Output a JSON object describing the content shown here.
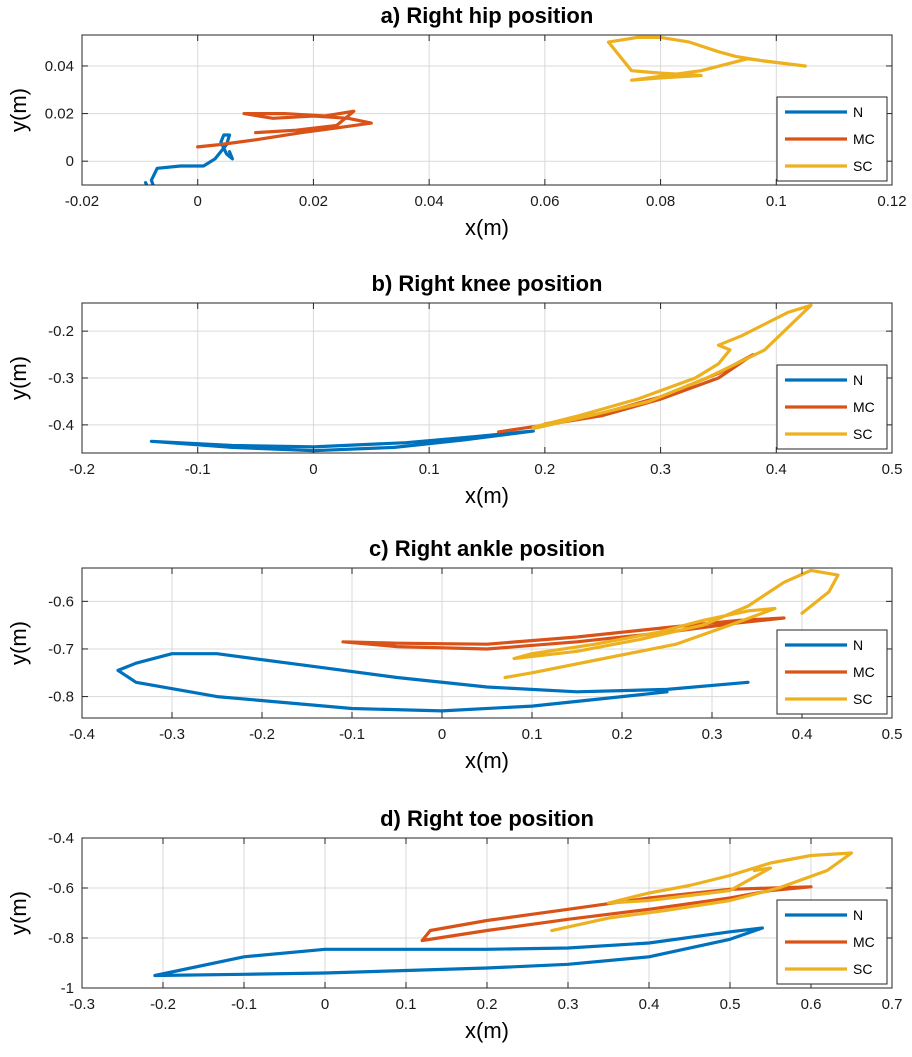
{
  "colors": {
    "N": "#0072BD",
    "MC": "#D95319",
    "SC": "#EDB120",
    "grid": "#d9d9d9",
    "axis": "#262626"
  },
  "chart_data": [
    {
      "type": "line",
      "title": "a) Right hip position",
      "xlabel": "x(m)",
      "ylabel": "y(m)",
      "xlim": [
        -0.02,
        0.12
      ],
      "ylim": [
        -0.01,
        0.053
      ],
      "xticks": [
        -0.02,
        0,
        0.02,
        0.04,
        0.06,
        0.08,
        0.1,
        0.12
      ],
      "xtick_labels": [
        "-0.02",
        "0",
        "0.02",
        "0.04",
        "0.06",
        "0.08",
        "0.1",
        "0.12"
      ],
      "yticks": [
        0,
        0.02,
        0.04
      ],
      "ytick_labels": [
        "0",
        "0.02",
        "0.04"
      ],
      "grid": true,
      "legend": "bottom-right",
      "series": [
        {
          "name": "N",
          "points": [
            [
              -0.009,
              -0.009
            ],
            [
              -0.0085,
              -0.012
            ],
            [
              -0.0075,
              -0.0115
            ],
            [
              -0.008,
              -0.008
            ],
            [
              -0.007,
              -0.003
            ],
            [
              -0.003,
              -0.002
            ],
            [
              0.001,
              -0.002
            ],
            [
              0.003,
              0.001
            ],
            [
              0.005,
              0.007
            ],
            [
              0.0055,
              0.011
            ],
            [
              0.0045,
              0.011
            ],
            [
              0.004,
              0.008
            ],
            [
              0.005,
              0.003
            ],
            [
              0.006,
              0.001
            ],
            [
              0.0055,
              0.004
            ]
          ]
        },
        {
          "name": "MC",
          "points": [
            [
              0.0,
              0.006
            ],
            [
              0.004,
              0.007
            ],
            [
              0.01,
              0.009
            ],
            [
              0.018,
              0.012
            ],
            [
              0.024,
              0.014
            ],
            [
              0.03,
              0.016
            ],
            [
              0.026,
              0.018
            ],
            [
              0.02,
              0.019
            ],
            [
              0.013,
              0.018
            ],
            [
              0.008,
              0.02
            ],
            [
              0.015,
              0.02
            ],
            [
              0.022,
              0.019
            ],
            [
              0.027,
              0.021
            ],
            [
              0.024,
              0.015
            ],
            [
              0.017,
              0.013
            ],
            [
              0.01,
              0.012
            ]
          ]
        },
        {
          "name": "SC",
          "points": [
            [
              0.071,
              0.05
            ],
            [
              0.076,
              0.052
            ],
            [
              0.08,
              0.052
            ],
            [
              0.085,
              0.05
            ],
            [
              0.09,
              0.046
            ],
            [
              0.093,
              0.044
            ],
            [
              0.098,
              0.042
            ],
            [
              0.105,
              0.04
            ],
            [
              0.095,
              0.043
            ],
            [
              0.087,
              0.038
            ],
            [
              0.081,
              0.036
            ],
            [
              0.075,
              0.034
            ],
            [
              0.08,
              0.035
            ],
            [
              0.087,
              0.036
            ],
            [
              0.08,
              0.037
            ],
            [
              0.075,
              0.038
            ],
            [
              0.071,
              0.05
            ]
          ]
        }
      ]
    },
    {
      "type": "line",
      "title": "b) Right knee position",
      "xlabel": "x(m)",
      "ylabel": "y(m)",
      "xlim": [
        -0.2,
        0.5
      ],
      "ylim": [
        -0.46,
        -0.14
      ],
      "xticks": [
        -0.2,
        -0.1,
        0,
        0.1,
        0.2,
        0.3,
        0.4,
        0.5
      ],
      "xtick_labels": [
        "-0.2",
        "-0.1",
        "0",
        "0.1",
        "0.2",
        "0.3",
        "0.4",
        "0.5"
      ],
      "yticks": [
        -0.4,
        -0.3,
        -0.2
      ],
      "ytick_labels": [
        "-0.4",
        "-0.3",
        "-0.2"
      ],
      "grid": true,
      "legend": "bottom-right",
      "series": [
        {
          "name": "N",
          "points": [
            [
              -0.14,
              -0.435
            ],
            [
              -0.07,
              -0.448
            ],
            [
              0.0,
              -0.455
            ],
            [
              0.07,
              -0.448
            ],
            [
              0.13,
              -0.432
            ],
            [
              0.19,
              -0.413
            ],
            [
              0.14,
              -0.425
            ],
            [
              0.08,
              -0.438
            ],
            [
              0.0,
              -0.447
            ],
            [
              -0.07,
              -0.444
            ],
            [
              -0.14,
              -0.435
            ]
          ]
        },
        {
          "name": "MC",
          "points": [
            [
              0.16,
              -0.415
            ],
            [
              0.2,
              -0.4
            ],
            [
              0.25,
              -0.38
            ],
            [
              0.3,
              -0.345
            ],
            [
              0.35,
              -0.3
            ],
            [
              0.38,
              -0.25
            ],
            [
              0.35,
              -0.29
            ],
            [
              0.3,
              -0.34
            ],
            [
              0.25,
              -0.375
            ],
            [
              0.2,
              -0.398
            ]
          ]
        },
        {
          "name": "SC",
          "points": [
            [
              0.19,
              -0.408
            ],
            [
              0.24,
              -0.38
            ],
            [
              0.29,
              -0.35
            ],
            [
              0.34,
              -0.3
            ],
            [
              0.39,
              -0.24
            ],
            [
              0.43,
              -0.145
            ],
            [
              0.41,
              -0.16
            ],
            [
              0.37,
              -0.21
            ],
            [
              0.35,
              -0.23
            ],
            [
              0.36,
              -0.24
            ],
            [
              0.35,
              -0.27
            ],
            [
              0.33,
              -0.3
            ],
            [
              0.28,
              -0.345
            ],
            [
              0.23,
              -0.38
            ],
            [
              0.19,
              -0.405
            ]
          ]
        }
      ]
    },
    {
      "type": "line",
      "title": "c) Right ankle position",
      "xlabel": "x(m)",
      "ylabel": "y(m)",
      "xlim": [
        -0.4,
        0.5
      ],
      "ylim": [
        -0.845,
        -0.53
      ],
      "xticks": [
        -0.4,
        -0.3,
        -0.2,
        -0.1,
        0,
        0.1,
        0.2,
        0.3,
        0.4,
        0.5
      ],
      "xtick_labels": [
        "-0.4",
        "-0.3",
        "-0.2",
        "-0.1",
        "0",
        "0.1",
        "0.2",
        "0.3",
        "0.4",
        "0.5"
      ],
      "yticks": [
        -0.8,
        -0.7,
        -0.6
      ],
      "ytick_labels": [
        "-0.8",
        "-0.7",
        "-0.6"
      ],
      "grid": true,
      "legend": "bottom-right",
      "series": [
        {
          "name": "N",
          "points": [
            [
              0.34,
              -0.77
            ],
            [
              0.25,
              -0.785
            ],
            [
              0.15,
              -0.79
            ],
            [
              0.05,
              -0.78
            ],
            [
              -0.05,
              -0.76
            ],
            [
              -0.15,
              -0.735
            ],
            [
              -0.25,
              -0.71
            ],
            [
              -0.3,
              -0.71
            ],
            [
              -0.34,
              -0.73
            ],
            [
              -0.36,
              -0.745
            ],
            [
              -0.34,
              -0.77
            ],
            [
              -0.25,
              -0.8
            ],
            [
              -0.1,
              -0.825
            ],
            [
              0.0,
              -0.83
            ],
            [
              0.1,
              -0.82
            ],
            [
              0.2,
              -0.8
            ],
            [
              0.25,
              -0.79
            ]
          ]
        },
        {
          "name": "MC",
          "points": [
            [
              -0.11,
              -0.685
            ],
            [
              -0.05,
              -0.695
            ],
            [
              0.05,
              -0.7
            ],
            [
              0.15,
              -0.685
            ],
            [
              0.25,
              -0.665
            ],
            [
              0.33,
              -0.645
            ],
            [
              0.38,
              -0.635
            ],
            [
              0.33,
              -0.64
            ],
            [
              0.25,
              -0.655
            ],
            [
              0.15,
              -0.675
            ],
            [
              0.05,
              -0.69
            ],
            [
              -0.05,
              -0.688
            ],
            [
              -0.11,
              -0.685
            ]
          ]
        },
        {
          "name": "SC",
          "points": [
            [
              0.07,
              -0.76
            ],
            [
              0.1,
              -0.75
            ],
            [
              0.18,
              -0.72
            ],
            [
              0.26,
              -0.69
            ],
            [
              0.32,
              -0.65
            ],
            [
              0.37,
              -0.615
            ],
            [
              0.34,
              -0.62
            ],
            [
              0.29,
              -0.64
            ],
            [
              0.24,
              -0.665
            ],
            [
              0.17,
              -0.69
            ],
            [
              0.1,
              -0.71
            ],
            [
              0.08,
              -0.72
            ],
            [
              0.15,
              -0.705
            ],
            [
              0.22,
              -0.68
            ],
            [
              0.29,
              -0.65
            ],
            [
              0.34,
              -0.61
            ],
            [
              0.38,
              -0.56
            ],
            [
              0.41,
              -0.535
            ],
            [
              0.44,
              -0.545
            ],
            [
              0.43,
              -0.58
            ],
            [
              0.41,
              -0.61
            ],
            [
              0.4,
              -0.625
            ]
          ]
        }
      ]
    },
    {
      "type": "line",
      "title": "d) Right toe position",
      "xlabel": "x(m)",
      "ylabel": "y(m)",
      "xlim": [
        -0.3,
        0.7
      ],
      "ylim": [
        -1.0,
        -0.4
      ],
      "xticks": [
        -0.3,
        -0.2,
        -0.1,
        0,
        0.1,
        0.2,
        0.3,
        0.4,
        0.5,
        0.6,
        0.7
      ],
      "xtick_labels": [
        "-0.3",
        "-0.2",
        "-0.1",
        "0",
        "0.1",
        "0.2",
        "0.3",
        "0.4",
        "0.5",
        "0.6",
        "0.7"
      ],
      "yticks": [
        -1.0,
        -0.8,
        -0.6,
        -0.4
      ],
      "ytick_labels": [
        "-1",
        "-0.8",
        "-0.6",
        "-0.4"
      ],
      "grid": true,
      "legend": "bottom-right",
      "series": [
        {
          "name": "N",
          "points": [
            [
              -0.21,
              -0.95
            ],
            [
              -0.1,
              -0.945
            ],
            [
              0.0,
              -0.94
            ],
            [
              0.1,
              -0.93
            ],
            [
              0.2,
              -0.92
            ],
            [
              0.3,
              -0.905
            ],
            [
              0.4,
              -0.875
            ],
            [
              0.5,
              -0.805
            ],
            [
              0.54,
              -0.76
            ],
            [
              0.5,
              -0.775
            ],
            [
              0.4,
              -0.82
            ],
            [
              0.3,
              -0.84
            ],
            [
              0.2,
              -0.845
            ],
            [
              0.1,
              -0.845
            ],
            [
              0.0,
              -0.845
            ],
            [
              -0.1,
              -0.875
            ],
            [
              -0.21,
              -0.95
            ]
          ]
        },
        {
          "name": "MC",
          "points": [
            [
              0.12,
              -0.81
            ],
            [
              0.2,
              -0.77
            ],
            [
              0.3,
              -0.725
            ],
            [
              0.4,
              -0.685
            ],
            [
              0.5,
              -0.64
            ],
            [
              0.55,
              -0.61
            ],
            [
              0.6,
              -0.595
            ],
            [
              0.5,
              -0.605
            ],
            [
              0.4,
              -0.64
            ],
            [
              0.3,
              -0.685
            ],
            [
              0.2,
              -0.73
            ],
            [
              0.13,
              -0.77
            ],
            [
              0.12,
              -0.81
            ]
          ]
        },
        {
          "name": "SC",
          "points": [
            [
              0.28,
              -0.77
            ],
            [
              0.35,
              -0.72
            ],
            [
              0.42,
              -0.69
            ],
            [
              0.5,
              -0.65
            ],
            [
              0.56,
              -0.6
            ],
            [
              0.62,
              -0.53
            ],
            [
              0.65,
              -0.46
            ],
            [
              0.6,
              -0.47
            ],
            [
              0.55,
              -0.5
            ],
            [
              0.5,
              -0.55
            ],
            [
              0.45,
              -0.59
            ],
            [
              0.4,
              -0.62
            ],
            [
              0.35,
              -0.66
            ],
            [
              0.4,
              -0.65
            ],
            [
              0.5,
              -0.61
            ],
            [
              0.55,
              -0.52
            ],
            [
              0.53,
              -0.53
            ]
          ]
        }
      ]
    }
  ]
}
